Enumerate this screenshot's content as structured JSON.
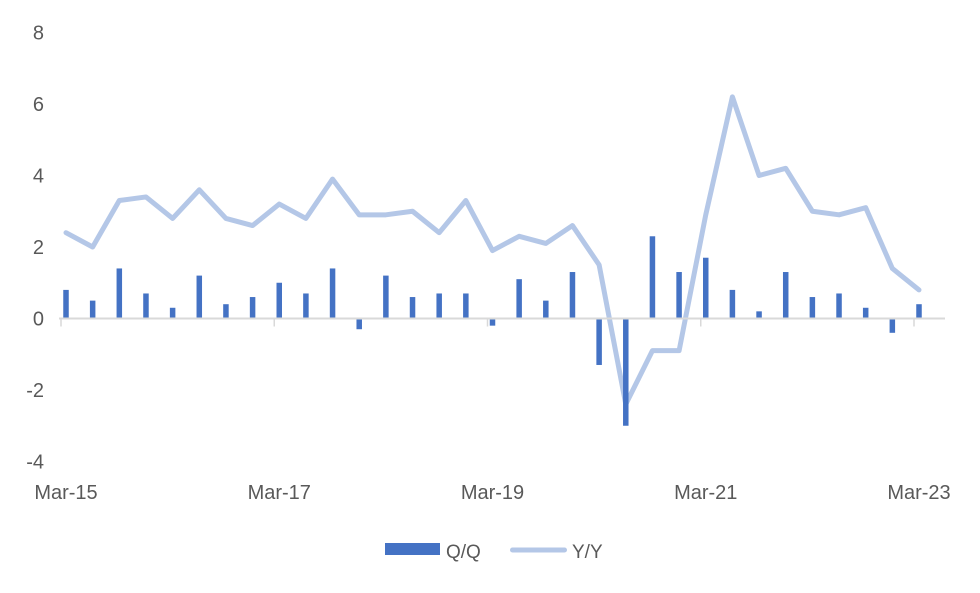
{
  "chart_data": {
    "type": "combo",
    "title": "",
    "xlabel": "",
    "ylabel": "",
    "categories": [
      "Mar-15",
      "Jun-15",
      "Sep-15",
      "Dec-15",
      "Mar-16",
      "Jun-16",
      "Sep-16",
      "Dec-16",
      "Mar-17",
      "Jun-17",
      "Sep-17",
      "Dec-17",
      "Mar-18",
      "Jun-18",
      "Sep-18",
      "Dec-18",
      "Mar-19",
      "Jun-19",
      "Sep-19",
      "Dec-19",
      "Mar-20",
      "Jun-20",
      "Sep-20",
      "Dec-20",
      "Mar-21",
      "Jun-21",
      "Sep-21",
      "Dec-21",
      "Mar-22",
      "Jun-22",
      "Sep-22",
      "Dec-22",
      "Mar-23"
    ],
    "series": [
      {
        "name": "Q/Q",
        "type": "bar",
        "color": "#4472C4",
        "values": [
          0.8,
          0.5,
          1.4,
          0.7,
          0.3,
          1.2,
          0.4,
          0.6,
          1.0,
          0.7,
          1.4,
          -0.3,
          1.2,
          0.6,
          0.7,
          0.7,
          -0.2,
          1.1,
          0.5,
          1.3,
          -1.3,
          -3.0,
          2.3,
          1.3,
          1.7,
          0.8,
          0.2,
          1.3,
          0.6,
          0.7,
          0.3,
          -0.4,
          0.4
        ]
      },
      {
        "name": "Y/Y",
        "type": "line",
        "color": "#B4C7E7",
        "values": [
          2.4,
          2.0,
          3.3,
          3.4,
          2.8,
          3.6,
          2.8,
          2.6,
          3.2,
          2.8,
          3.9,
          2.9,
          2.9,
          3.0,
          2.4,
          3.3,
          1.9,
          2.3,
          2.1,
          2.6,
          1.5,
          -2.4,
          -0.9,
          -0.9,
          2.9,
          6.2,
          4.0,
          4.2,
          3.0,
          2.9,
          3.1,
          1.4,
          0.8
        ]
      }
    ],
    "ylim": [
      -4,
      8
    ],
    "yticks": [
      8,
      6,
      4,
      2,
      0,
      -2,
      -4
    ],
    "x_axis_labels": [
      "Mar-15",
      "Mar-17",
      "Mar-19",
      "Mar-21",
      "Mar-23"
    ],
    "x_axis_label_indices": [
      0,
      8,
      16,
      24,
      32
    ],
    "grid": false,
    "legend_position": "bottom"
  },
  "colors": {
    "bar": "#4472C4",
    "line": "#B4C7E7",
    "axis_line": "#D9D9D9",
    "text": "#595959"
  }
}
